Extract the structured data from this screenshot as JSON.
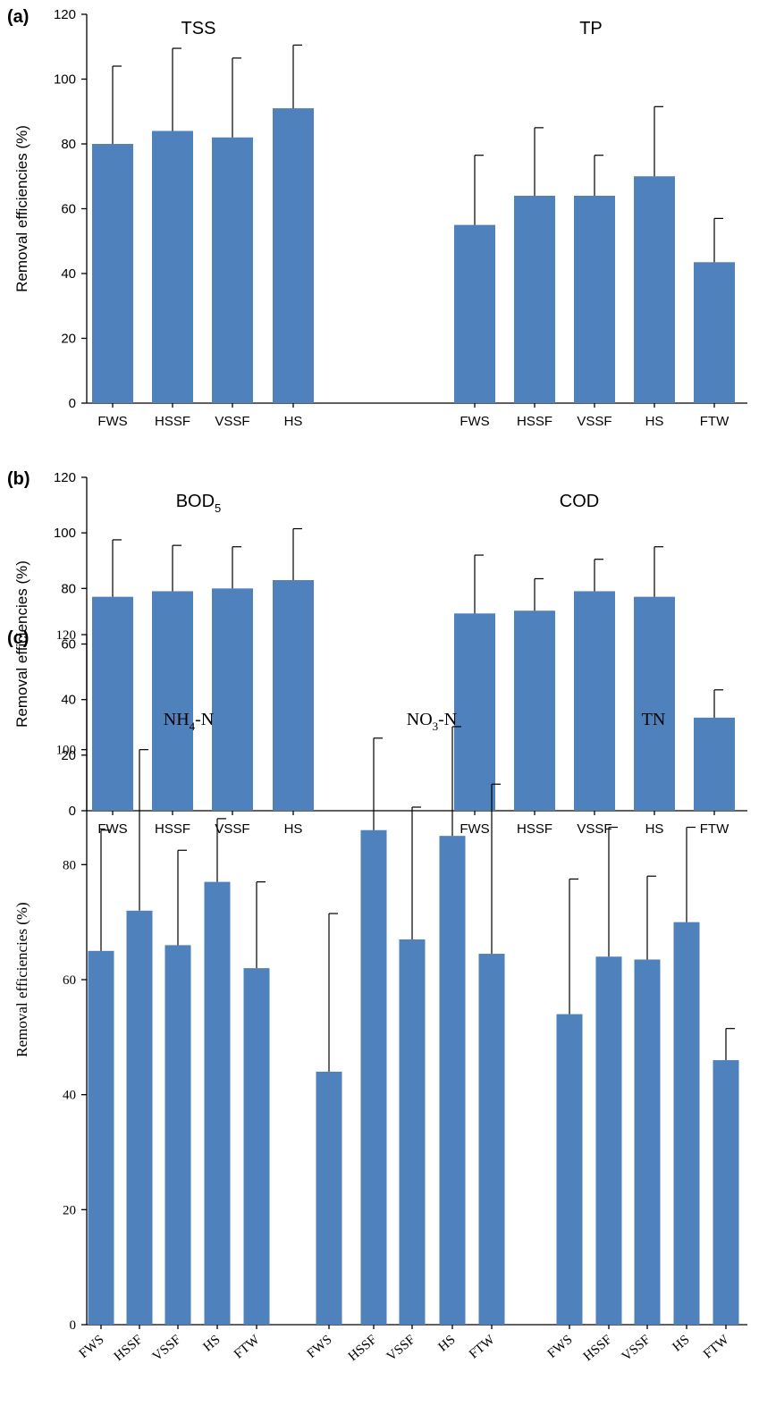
{
  "colors": {
    "bar": "#4f81bd",
    "axis": "#000000",
    "background": "#ffffff"
  },
  "chart_data": [
    {
      "type": "bar",
      "panel_label": "(a)",
      "ylabel": "Removal efficiencies (%)",
      "ylim": [
        0,
        120
      ],
      "yticks": [
        0,
        20,
        40,
        60,
        80,
        100,
        120
      ],
      "grid": false,
      "groups": [
        {
          "title": "TSS",
          "title_main": "TSS",
          "title_sub": "",
          "title_suffix": "",
          "categories": [
            "FWS",
            "HSSF",
            "VSSF",
            "HS"
          ],
          "values": [
            80,
            84,
            82,
            91
          ],
          "errors": [
            24,
            25.5,
            24.5,
            19.5
          ]
        },
        {
          "title": "TP",
          "title_main": "TP",
          "title_sub": "",
          "title_suffix": "",
          "categories": [
            "FWS",
            "HSSF",
            "VSSF",
            "HS",
            "FTW"
          ],
          "values": [
            55,
            64,
            64,
            70,
            43.5
          ],
          "errors": [
            21.5,
            21,
            12.5,
            21.5,
            13.5
          ]
        }
      ]
    },
    {
      "type": "bar",
      "panel_label": "(b)",
      "ylabel": "Removal efficiencies (%)",
      "ylim": [
        0,
        120
      ],
      "yticks": [
        0,
        20,
        40,
        60,
        80,
        100,
        120
      ],
      "grid": false,
      "groups": [
        {
          "title": "BOD5",
          "title_main": "BOD",
          "title_sub": "5",
          "title_suffix": "",
          "categories": [
            "FWS",
            "HSSF",
            "VSSF",
            "HS"
          ],
          "values": [
            77,
            79,
            80,
            83
          ],
          "errors": [
            20.5,
            16.5,
            15,
            18.5
          ]
        },
        {
          "title": "COD",
          "title_main": "COD",
          "title_sub": "",
          "title_suffix": "",
          "categories": [
            "FWS",
            "HSSF",
            "VSSF",
            "HS",
            "FTW"
          ],
          "values": [
            71,
            72,
            79,
            77,
            33.5
          ],
          "errors": [
            21,
            11.5,
            11.5,
            18,
            10
          ]
        }
      ]
    },
    {
      "type": "bar",
      "panel_label": "(c)",
      "ylabel": "Removal efficiencies (%)",
      "ylim": [
        0,
        120
      ],
      "yticks": [
        0,
        20,
        40,
        60,
        80,
        100,
        120
      ],
      "grid": false,
      "groups": [
        {
          "title": "NH4-N",
          "title_main": "NH",
          "title_sub": "4",
          "title_suffix": "-N",
          "categories": [
            "FWS",
            "HSSF",
            "VSSF",
            "HS",
            "FTW"
          ],
          "values": [
            65,
            72,
            66,
            77,
            62
          ],
          "errors": [
            21,
            28,
            16.5,
            11,
            15
          ]
        },
        {
          "title": "NO3-N",
          "title_main": "NO",
          "title_sub": "3",
          "title_suffix": "-N",
          "categories": [
            "FWS",
            "HSSF",
            "VSSF",
            "HS",
            "FTW"
          ],
          "values": [
            44,
            86,
            67,
            85,
            64.5
          ],
          "errors": [
            27.5,
            16,
            23,
            19,
            29.5
          ]
        },
        {
          "title": "TN",
          "title_main": "TN",
          "title_sub": "",
          "title_suffix": "",
          "categories": [
            "FWS",
            "HSSF",
            "VSSF",
            "HS",
            "FTW"
          ],
          "values": [
            54,
            64,
            63.5,
            70,
            46
          ],
          "errors": [
            23.5,
            22.5,
            14.5,
            16.5,
            5.5
          ]
        }
      ]
    }
  ]
}
